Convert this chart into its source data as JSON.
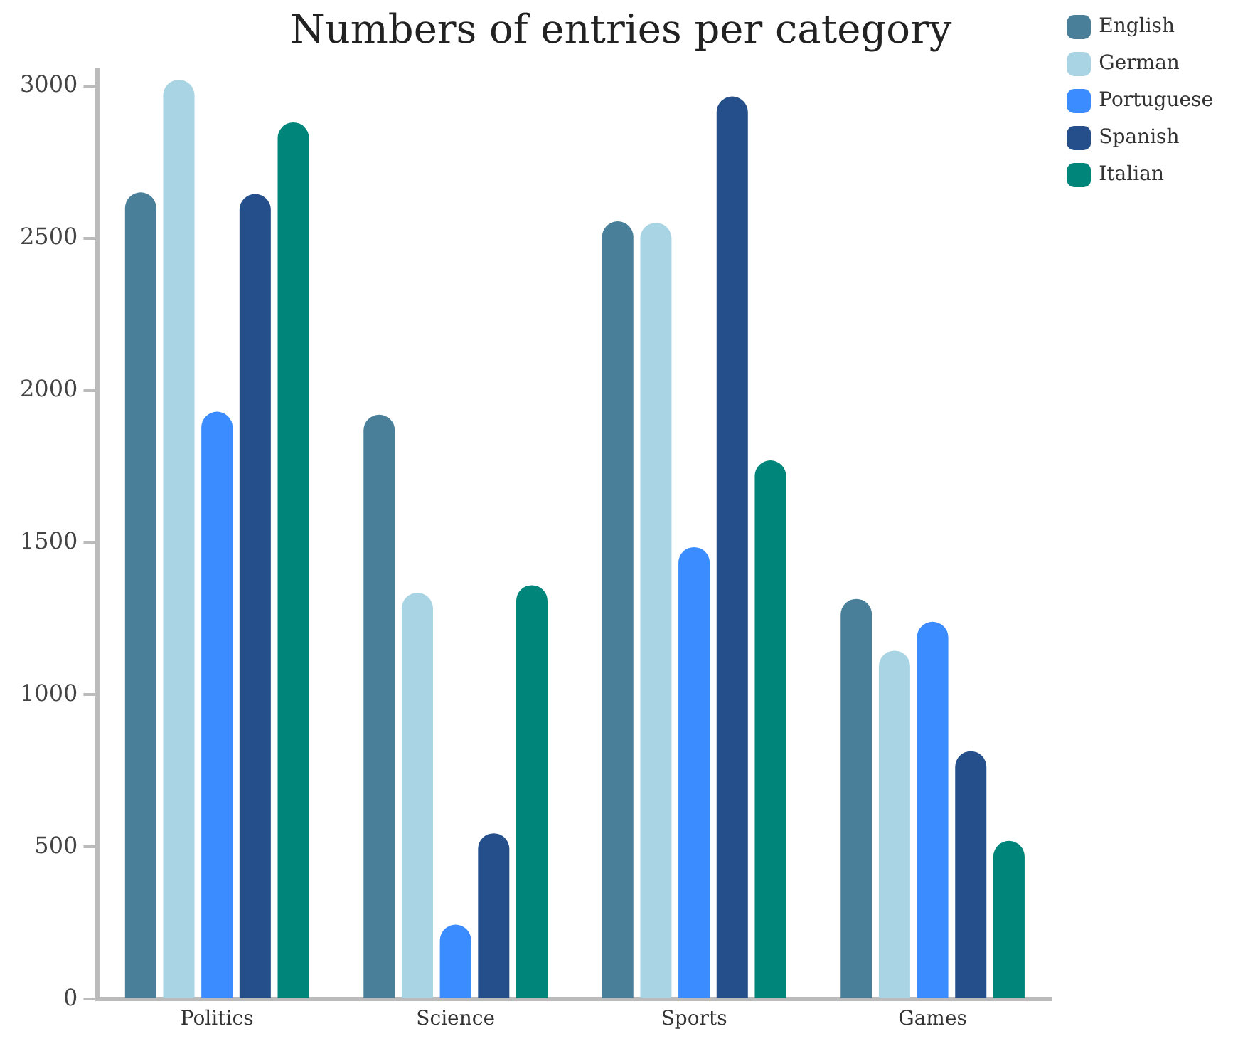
{
  "chart_data": {
    "type": "bar",
    "title": "Numbers of entries per category",
    "categories": [
      "Politics",
      "Science",
      "Sports",
      "Games"
    ],
    "series": [
      {
        "name": "English",
        "color": "#4a7f9a",
        "values": [
          2650,
          1920,
          2555,
          1315
        ]
      },
      {
        "name": "German",
        "color": "#a9d4e4",
        "values": [
          3020,
          1335,
          2550,
          1145
        ]
      },
      {
        "name": "Portuguese",
        "color": "#3a8cff",
        "values": [
          1930,
          245,
          1485,
          1240
        ]
      },
      {
        "name": "Spanish",
        "color": "#254f8a",
        "values": [
          2645,
          545,
          2965,
          815
        ]
      },
      {
        "name": "Italian",
        "color": "#00857a",
        "values": [
          2880,
          1360,
          1770,
          520
        ]
      }
    ],
    "ylim": [
      0,
      3050
    ],
    "yticks": [
      0,
      500,
      1000,
      1500,
      2000,
      2500,
      3000
    ],
    "grid": false,
    "legend": "top right"
  }
}
